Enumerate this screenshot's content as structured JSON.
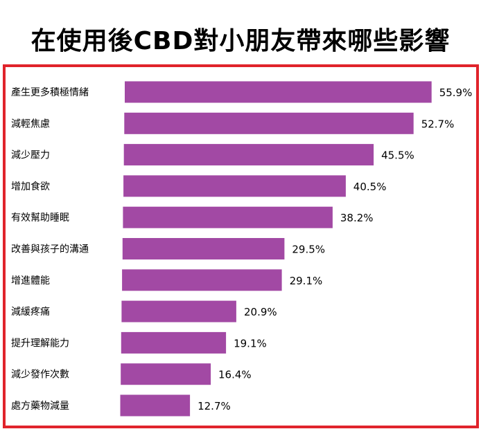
{
  "title": "在使用後CBD對小朋友帶來哪些影響",
  "colors": {
    "bar": "#a249a4",
    "frame": "#e0232b",
    "text": "#000000"
  },
  "chart_data": {
    "type": "bar",
    "orientation": "horizontal",
    "title": "在使用後CBD對小朋友帶來哪些影響",
    "categories": [
      "產生更多積極情緒",
      "減輕焦慮",
      "減少壓力",
      "增加食欲",
      "有效幫助睡眠",
      "改善與孩子的溝通",
      "增進體能",
      "減緩疼痛",
      "提升理解能力",
      "減少發作次數",
      "處方藥物減量"
    ],
    "values": [
      55.9,
      52.7,
      45.5,
      40.5,
      38.2,
      29.5,
      29.1,
      20.9,
      19.1,
      16.4,
      12.7
    ],
    "value_labels": [
      "55.9%",
      "52.7%",
      "45.5%",
      "40.5%",
      "38.2%",
      "29.5%",
      "29.1%",
      "20.9%",
      "19.1%",
      "16.4%",
      "12.7%"
    ],
    "xlabel": "",
    "ylabel": "",
    "grid": false,
    "legend": "none"
  }
}
